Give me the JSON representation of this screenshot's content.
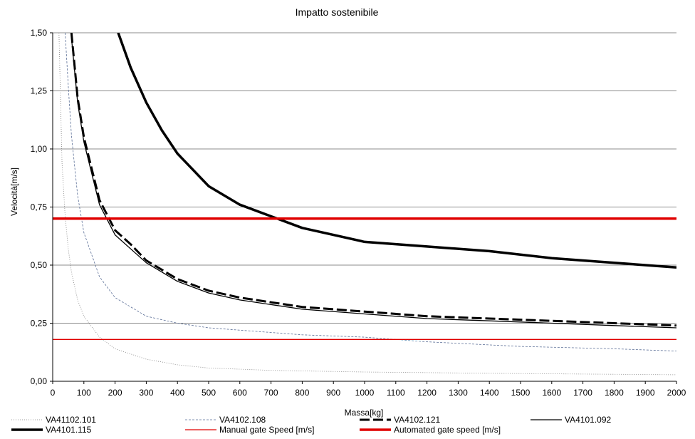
{
  "chart_data": {
    "type": "line",
    "title": "Impatto sostenibile",
    "xlabel": "Massa[kg]",
    "ylabel": "Velocità[m/s]",
    "xlim": [
      0,
      2000
    ],
    "ylim": [
      0,
      1.5
    ],
    "x_ticks": [
      "0",
      "100",
      "200",
      "300",
      "400",
      "500",
      "600",
      "700",
      "800",
      "900",
      "1000",
      "1100",
      "1200",
      "1300",
      "1400",
      "1500",
      "1600",
      "1700",
      "1800",
      "1900",
      "2000"
    ],
    "y_ticks": [
      "0,00",
      "0,25",
      "0,50",
      "0,75",
      "1,00",
      "1,25",
      "1,50"
    ],
    "grid": "horizontal",
    "legend_position": "bottom",
    "series": [
      {
        "name": "VA41102.101",
        "color": "#808080",
        "style": "thin-dotted",
        "x": [
          20,
          30,
          40,
          50,
          60,
          80,
          100,
          150,
          200,
          300,
          400,
          500,
          700,
          1000,
          1500,
          2000
        ],
        "y": [
          1.5,
          0.94,
          0.71,
          0.57,
          0.47,
          0.35,
          0.28,
          0.19,
          0.14,
          0.095,
          0.071,
          0.057,
          0.047,
          0.04,
          0.033,
          0.028
        ]
      },
      {
        "name": "VA4102.108",
        "color": "#5a6e96",
        "style": "thin-dashed",
        "x": [
          40,
          50,
          60,
          80,
          100,
          150,
          200,
          300,
          400,
          500,
          600,
          700,
          800,
          1000,
          1200,
          1500,
          1800,
          2000
        ],
        "y": [
          1.5,
          1.27,
          1.06,
          0.8,
          0.64,
          0.45,
          0.36,
          0.28,
          0.25,
          0.23,
          0.22,
          0.21,
          0.2,
          0.19,
          0.17,
          0.15,
          0.14,
          0.13
        ]
      },
      {
        "name": "VA4102.121",
        "color": "#000000",
        "style": "thick-dashed",
        "x": [
          60,
          80,
          100,
          150,
          200,
          250,
          300,
          400,
          500,
          600,
          800,
          1000,
          1200,
          1400,
          1600,
          1800,
          2000
        ],
        "y": [
          1.5,
          1.22,
          1.05,
          0.78,
          0.65,
          0.59,
          0.52,
          0.44,
          0.39,
          0.36,
          0.32,
          0.3,
          0.28,
          0.27,
          0.26,
          0.25,
          0.24
        ]
      },
      {
        "name": "VA4101.092",
        "color": "#000000",
        "style": "solid",
        "x": [
          60,
          80,
          100,
          150,
          200,
          250,
          300,
          400,
          500,
          600,
          800,
          1000,
          1200,
          1400,
          1600,
          1800,
          2000
        ],
        "y": [
          1.48,
          1.2,
          1.03,
          0.76,
          0.63,
          0.57,
          0.51,
          0.43,
          0.38,
          0.35,
          0.31,
          0.29,
          0.27,
          0.26,
          0.25,
          0.24,
          0.23
        ]
      },
      {
        "name": "VA4101.115",
        "color": "#000000",
        "style": "thick-solid",
        "x": [
          210,
          250,
          300,
          350,
          400,
          450,
          500,
          600,
          700,
          800,
          900,
          1000,
          1200,
          1400,
          1600,
          1800,
          2000
        ],
        "y": [
          1.5,
          1.35,
          1.2,
          1.08,
          0.98,
          0.91,
          0.84,
          0.76,
          0.71,
          0.66,
          0.63,
          0.6,
          0.58,
          0.56,
          0.53,
          0.51,
          0.49
        ]
      },
      {
        "name": "Manual gate Speed [m/s]",
        "color": "#e00000",
        "style": "thin-solid",
        "x": [
          0,
          2000
        ],
        "y": [
          0.18,
          0.18
        ]
      },
      {
        "name": "Automated gate speed [m/s]",
        "color": "#e00000",
        "style": "thick-solid",
        "x": [
          0,
          2000
        ],
        "y": [
          0.7,
          0.7
        ]
      }
    ]
  }
}
